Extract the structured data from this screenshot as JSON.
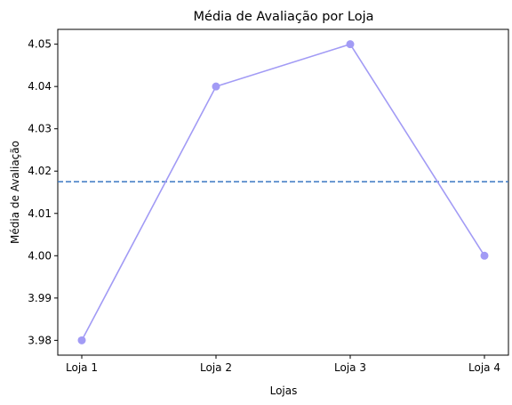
{
  "chart_data": {
    "type": "line",
    "title": "Média de Avaliação por Loja",
    "xlabel": "Lojas",
    "ylabel": "Média de Avaliação",
    "categories": [
      "Loja 1",
      "Loja 2",
      "Loja 3",
      "Loja 4"
    ],
    "series": [
      {
        "values": [
          3.98,
          4.04,
          4.05,
          4.0
        ],
        "color": "#a29bf5",
        "marker": "circle"
      }
    ],
    "reference_line": {
      "value": 4.0175,
      "style": "dashed",
      "color": "#3a78c2"
    },
    "ylim": [
      3.9765,
      4.0535
    ],
    "yticks": [
      "3.98",
      "3.99",
      "4.00",
      "4.01",
      "4.02",
      "4.03",
      "4.04",
      "4.05"
    ],
    "grid": false,
    "legend": "none"
  }
}
